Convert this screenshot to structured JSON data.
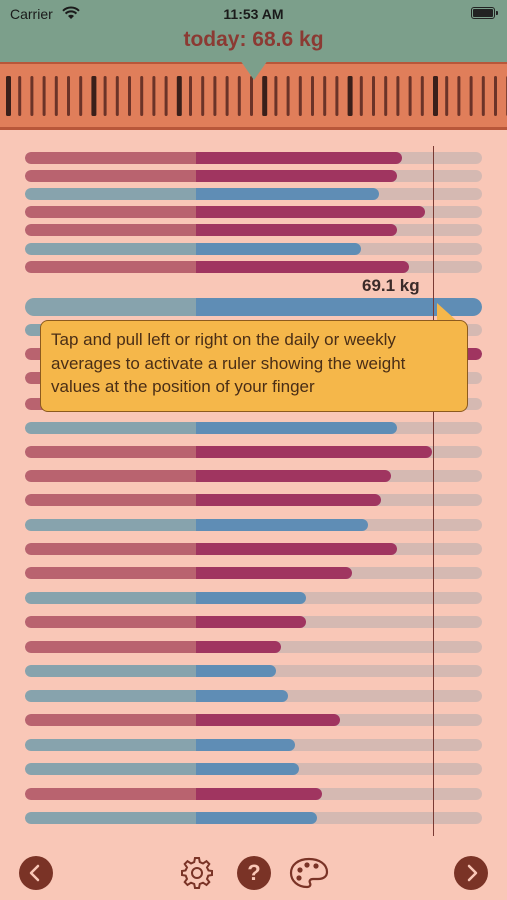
{
  "status_bar": {
    "carrier": "Carrier",
    "time": "11:53 AM"
  },
  "header": {
    "title": "today: 68.6 kg"
  },
  "cursor": {
    "value_label": "69.1 kg"
  },
  "tooltip": {
    "text": "Tap and pull left or right on the daily or weekly averages to activate a ruler showing the weight values at the position of your finger"
  },
  "toolbar": {
    "help_label": "?"
  },
  "colors": {
    "background": "#f9c7b7",
    "header": "#7c9f8b",
    "ruler": "#e07e5a",
    "daily_bar": "#a03560",
    "weekly_bar": "#5f8db5",
    "tooltip": "#f5b74a",
    "button": "#7a3326"
  },
  "icons": [
    "wifi-icon",
    "battery-icon",
    "chevron-left-icon",
    "gear-icon",
    "help-icon",
    "palette-icon",
    "chevron-right-icon"
  ],
  "bars": [
    {
      "kind": "daily",
      "level": 0.825
    },
    {
      "kind": "daily",
      "level": 0.815
    },
    {
      "kind": "weekly",
      "level": 0.775
    },
    {
      "kind": "daily",
      "level": 0.875
    },
    {
      "kind": "daily",
      "level": 0.815
    },
    {
      "kind": "weekly",
      "level": 0.735
    },
    {
      "kind": "daily",
      "level": 0.84
    },
    {
      "kind": "weekly",
      "level": 1.0,
      "tall": true
    },
    {
      "kind": "weekly",
      "level": 0.95
    },
    {
      "kind": "daily",
      "level": 1.0
    },
    {
      "kind": "daily",
      "level": 0.93
    },
    {
      "kind": "daily",
      "level": 0.88
    },
    {
      "kind": "weekly",
      "level": 0.815
    },
    {
      "kind": "daily",
      "level": 0.89
    },
    {
      "kind": "daily",
      "level": 0.8
    },
    {
      "kind": "daily",
      "level": 0.78
    },
    {
      "kind": "weekly",
      "level": 0.75
    },
    {
      "kind": "daily",
      "level": 0.815
    },
    {
      "kind": "daily",
      "level": 0.715
    },
    {
      "kind": "weekly",
      "level": 0.615
    },
    {
      "kind": "daily",
      "level": 0.615
    },
    {
      "kind": "daily",
      "level": 0.56
    },
    {
      "kind": "weekly",
      "level": 0.55
    },
    {
      "kind": "weekly",
      "level": 0.575
    },
    {
      "kind": "daily",
      "level": 0.69
    },
    {
      "kind": "weekly",
      "level": 0.59
    },
    {
      "kind": "weekly",
      "level": 0.6
    },
    {
      "kind": "daily",
      "level": 0.65
    },
    {
      "kind": "weekly",
      "level": 0.64
    }
  ]
}
